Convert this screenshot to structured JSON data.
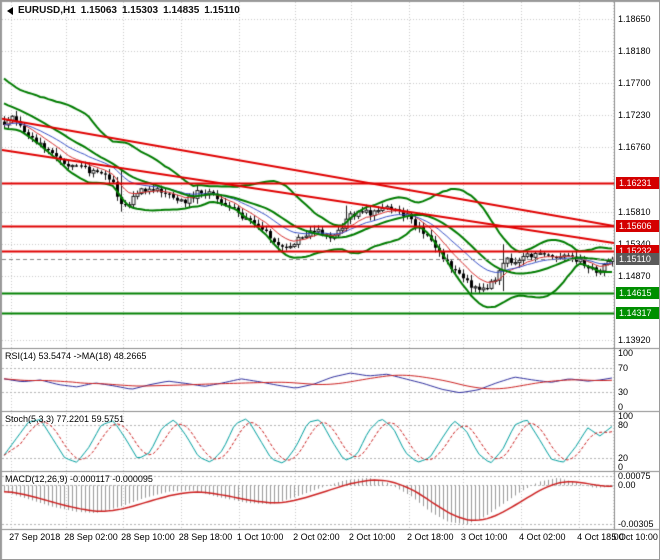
{
  "window": {
    "title": "EURUSD,H1 chart"
  },
  "header": {
    "symbol": "EURUSD,H1",
    "open": "1.15063",
    "high": "1.15303",
    "low": "1.14835",
    "close": "1.15110"
  },
  "colors": {
    "background": "#ffffff",
    "grid": "#c9c9c9",
    "separator": "#8c8c8c",
    "candle": "#1a1a1a",
    "candle_up_fill": "#ffffff",
    "candle_down_fill": "#000000",
    "bollinger": "#007c00",
    "ema_fast": "#d83030",
    "ema_slow": "#3a52c8",
    "trendline": "#e00000",
    "level_resistance": "#e00000",
    "level_support": "#008000",
    "bid_line": "#888888",
    "badge_resistance": "#d40000",
    "badge_support": "#008f00",
    "badge_bid": "#5a5a5a",
    "rsi_line": "#2e2e9e",
    "rsi_ma": "#cc2020",
    "stoch_main": "#009f9f",
    "stoch_signal": "#cc2020",
    "macd_hist": "#9a9a9a",
    "macd_signal": "#cc2020",
    "panel_level_dash": "#b4b4b4",
    "text": "#000000"
  },
  "chart_data": [
    {
      "type": "candlestick",
      "panel": "main",
      "symbol": "EURUSD",
      "timeframe": "H1",
      "ohlc_last": {
        "open": 1.15063,
        "high": 1.15303,
        "low": 1.14835,
        "close": 1.1511
      },
      "y_range": [
        1.13802,
        1.189
      ],
      "bars_total": 152,
      "y_axis_labels": [
        {
          "text": "1.18650",
          "price": 1.1865
        },
        {
          "text": "1.18180",
          "price": 1.1818
        },
        {
          "text": "1.17700",
          "price": 1.177
        },
        {
          "text": "1.17230",
          "price": 1.1723
        },
        {
          "text": "1.16760",
          "price": 1.1676
        },
        {
          "text": "1.15810",
          "price": 1.1581
        },
        {
          "text": "1.15340",
          "price": 1.1534
        },
        {
          "text": "1.14870",
          "price": 1.1487
        },
        {
          "text": "1.13920",
          "price": 1.1392
        }
      ],
      "x_axis_labels": [
        {
          "text": "27 Sep 2018",
          "pos": 0.015
        },
        {
          "text": "28 Sep 02:00",
          "pos": 0.105
        },
        {
          "text": "28 Sep 10:00",
          "pos": 0.198
        },
        {
          "text": "28 Sep 18:00",
          "pos": 0.292
        },
        {
          "text": "1 Oct 10:00",
          "pos": 0.387
        },
        {
          "text": "2 Oct 02:00",
          "pos": 0.479
        },
        {
          "text": "2 Oct 10:00",
          "pos": 0.57
        },
        {
          "text": "2 Oct 18:00",
          "pos": 0.665
        },
        {
          "text": "3 Oct 10:00",
          "pos": 0.753
        },
        {
          "text": "4 Oct 02:00",
          "pos": 0.848
        },
        {
          "text": "4 Oct 18:00",
          "pos": 0.943
        },
        {
          "text": "5 Oct 10:00",
          "pos": 0.999
        }
      ],
      "close_anchors": [
        [
          0,
          1.1712
        ],
        [
          2,
          1.1719
        ],
        [
          4,
          1.1708
        ],
        [
          6,
          1.1697
        ],
        [
          9,
          1.1681
        ],
        [
          12,
          1.1663
        ],
        [
          16,
          1.1651
        ],
        [
          20,
          1.1643
        ],
        [
          24,
          1.1639
        ],
        [
          27,
          1.1621
        ],
        [
          29,
          1.1594
        ],
        [
          31,
          1.1588
        ],
        [
          33,
          1.1611
        ],
        [
          37,
          1.1616
        ],
        [
          41,
          1.1604
        ],
        [
          45,
          1.1597
        ],
        [
          48,
          1.1609
        ],
        [
          51,
          1.1611
        ],
        [
          53,
          1.1597
        ],
        [
          56,
          1.1589
        ],
        [
          59,
          1.1573
        ],
        [
          62,
          1.1561
        ],
        [
          65,
          1.1549
        ],
        [
          68,
          1.1534
        ],
        [
          70,
          1.1527
        ],
        [
          72,
          1.1537
        ],
        [
          75,
          1.1548
        ],
        [
          78,
          1.1552
        ],
        [
          81,
          1.1544
        ],
        [
          84,
          1.1561
        ],
        [
          86,
          1.1576
        ],
        [
          89,
          1.1581
        ],
        [
          92,
          1.1579
        ],
        [
          95,
          1.1586
        ],
        [
          98,
          1.1582
        ],
        [
          101,
          1.157
        ],
        [
          104,
          1.1551
        ],
        [
          107,
          1.1526
        ],
        [
          110,
          1.1506
        ],
        [
          113,
          1.1486
        ],
        [
          116,
          1.1473
        ],
        [
          119,
          1.1467
        ],
        [
          121,
          1.1474
        ],
        [
          123,
          1.1492
        ],
        [
          125,
          1.1513
        ],
        [
          127,
          1.1506
        ],
        [
          130,
          1.1516
        ],
        [
          133,
          1.1521
        ],
        [
          136,
          1.1513
        ],
        [
          139,
          1.1519
        ],
        [
          142,
          1.1511
        ],
        [
          145,
          1.1499
        ],
        [
          148,
          1.1493
        ],
        [
          150,
          1.1506
        ],
        [
          151,
          1.1511
        ]
      ],
      "wick_overrides": [
        [
          29,
          1.1642,
          1.1581
        ],
        [
          85,
          1.159,
          1.1552
        ],
        [
          124,
          1.1533,
          1.1464
        ]
      ],
      "levels": [
        {
          "label": "1.16231",
          "price": 1.16231,
          "kind": "resistance"
        },
        {
          "label": "1.15606",
          "price": 1.15606,
          "kind": "resistance"
        },
        {
          "label": "1.15232",
          "price": 1.15232,
          "kind": "resistance"
        },
        {
          "label": "1.15110",
          "price": 1.1511,
          "kind": "bid"
        },
        {
          "label": "1.14615",
          "price": 1.14615,
          "kind": "support"
        },
        {
          "label": "1.14317",
          "price": 1.14317,
          "kind": "support"
        }
      ],
      "trendlines": [
        {
          "from": [
            0,
            1.1718
          ],
          "to": [
            1,
            1.156
          ]
        },
        {
          "from": [
            0,
            1.1672
          ],
          "to": [
            1,
            1.1535
          ]
        }
      ],
      "overlays": {
        "bollinger": {
          "period": 20,
          "deviation": 2,
          "pre_window_trend": [
            1.1775,
            1.1713
          ]
        },
        "ema_fast_period": 8,
        "ema_slow_period": 16
      }
    },
    {
      "type": "line",
      "panel": "rsi",
      "title": "RSI(14) 53.5474 ->MA(18) 48.2665",
      "last_value": 53.5474,
      "ma_last_value": 48.2665,
      "range": [
        0,
        100
      ],
      "dashed_levels": [
        70,
        30
      ],
      "ma_period": 18,
      "axis_labels": [
        {
          "text": "100",
          "value": 100
        },
        {
          "text": "70",
          "value": 70
        },
        {
          "text": "30",
          "value": 30
        },
        {
          "text": "0",
          "value": 0
        }
      ],
      "value_anchors": [
        [
          0,
          52
        ],
        [
          0.03,
          47
        ],
        [
          0.06,
          50
        ],
        [
          0.09,
          42
        ],
        [
          0.12,
          38
        ],
        [
          0.15,
          45
        ],
        [
          0.18,
          40
        ],
        [
          0.21,
          34
        ],
        [
          0.24,
          42
        ],
        [
          0.27,
          48
        ],
        [
          0.3,
          44
        ],
        [
          0.33,
          39
        ],
        [
          0.36,
          45
        ],
        [
          0.39,
          52
        ],
        [
          0.42,
          47
        ],
        [
          0.45,
          41
        ],
        [
          0.48,
          36
        ],
        [
          0.51,
          43
        ],
        [
          0.54,
          55
        ],
        [
          0.57,
          62
        ],
        [
          0.6,
          57
        ],
        [
          0.63,
          60
        ],
        [
          0.66,
          52
        ],
        [
          0.69,
          44
        ],
        [
          0.72,
          34
        ],
        [
          0.75,
          28
        ],
        [
          0.78,
          33
        ],
        [
          0.81,
          45
        ],
        [
          0.84,
          55
        ],
        [
          0.87,
          50
        ],
        [
          0.9,
          46
        ],
        [
          0.93,
          52
        ],
        [
          0.96,
          48
        ],
        [
          0.98,
          50
        ],
        [
          1,
          53.5
        ]
      ]
    },
    {
      "type": "line",
      "panel": "stoch",
      "title": "Stoch(5,3,3) 77.2201 59.5751",
      "last_value": 77.2201,
      "signal_last_value": 59.5751,
      "range": [
        0,
        100
      ],
      "dashed_levels": [
        80,
        20
      ],
      "signal_period": 5,
      "axis_labels": [
        {
          "text": "100",
          "value": 100
        },
        {
          "text": "80",
          "value": 80
        },
        {
          "text": "20",
          "value": 20
        },
        {
          "text": "0",
          "value": 0
        }
      ],
      "value_anchors": [
        [
          0,
          25
        ],
        [
          0.02,
          55
        ],
        [
          0.04,
          85
        ],
        [
          0.06,
          90
        ],
        [
          0.08,
          55
        ],
        [
          0.1,
          20
        ],
        [
          0.12,
          12
        ],
        [
          0.14,
          40
        ],
        [
          0.16,
          80
        ],
        [
          0.18,
          88
        ],
        [
          0.2,
          55
        ],
        [
          0.22,
          18
        ],
        [
          0.24,
          30
        ],
        [
          0.26,
          75
        ],
        [
          0.28,
          90
        ],
        [
          0.3,
          60
        ],
        [
          0.32,
          22
        ],
        [
          0.34,
          12
        ],
        [
          0.36,
          35
        ],
        [
          0.38,
          82
        ],
        [
          0.4,
          92
        ],
        [
          0.42,
          55
        ],
        [
          0.44,
          18
        ],
        [
          0.46,
          10
        ],
        [
          0.48,
          40
        ],
        [
          0.5,
          85
        ],
        [
          0.52,
          90
        ],
        [
          0.54,
          50
        ],
        [
          0.56,
          15
        ],
        [
          0.58,
          25
        ],
        [
          0.6,
          70
        ],
        [
          0.62,
          92
        ],
        [
          0.64,
          75
        ],
        [
          0.66,
          30
        ],
        [
          0.68,
          12
        ],
        [
          0.7,
          20
        ],
        [
          0.72,
          55
        ],
        [
          0.74,
          88
        ],
        [
          0.76,
          70
        ],
        [
          0.78,
          28
        ],
        [
          0.8,
          10
        ],
        [
          0.82,
          35
        ],
        [
          0.84,
          80
        ],
        [
          0.86,
          90
        ],
        [
          0.88,
          55
        ],
        [
          0.9,
          18
        ],
        [
          0.92,
          12
        ],
        [
          0.94,
          40
        ],
        [
          0.96,
          75
        ],
        [
          0.98,
          60
        ],
        [
          1,
          77.2
        ]
      ]
    },
    {
      "type": "macd",
      "panel": "macd",
      "title": "MACD(12,26,9) -0.000117 -0.000095",
      "last_value": -0.000117,
      "signal_last_value": -9.5e-05,
      "range": [
        -0.0033,
        0.0009
      ],
      "signal_period": 9,
      "axis_labels": [
        {
          "text": "0.00075",
          "value": 0.00075
        },
        {
          "text": "0.00",
          "value": 0
        },
        {
          "text": "-0.00305",
          "value": -0.00305
        }
      ],
      "value_anchors": [
        [
          0,
          -0.0005
        ],
        [
          0.04,
          -0.0011
        ],
        [
          0.08,
          -0.0017
        ],
        [
          0.12,
          -0.0021
        ],
        [
          0.15,
          -0.0022
        ],
        [
          0.19,
          -0.0017
        ],
        [
          0.23,
          -0.001
        ],
        [
          0.27,
          -0.0005
        ],
        [
          0.31,
          -0.0004
        ],
        [
          0.35,
          -0.0009
        ],
        [
          0.4,
          -0.0014
        ],
        [
          0.44,
          -0.0015
        ],
        [
          0.48,
          -0.0009
        ],
        [
          0.52,
          -0.0002
        ],
        [
          0.56,
          0.0004
        ],
        [
          0.6,
          0.0006
        ],
        [
          0.63,
          0.0002
        ],
        [
          0.67,
          -0.0009
        ],
        [
          0.7,
          -0.0021
        ],
        [
          0.73,
          -0.0029
        ],
        [
          0.76,
          -0.0031
        ],
        [
          0.79,
          -0.0025
        ],
        [
          0.82,
          -0.0015
        ],
        [
          0.85,
          -0.0005
        ],
        [
          0.88,
          0.0003
        ],
        [
          0.91,
          0.0006
        ],
        [
          0.94,
          0.0002
        ],
        [
          0.97,
          -0.0002
        ],
        [
          1,
          -0.000117
        ]
      ]
    }
  ]
}
